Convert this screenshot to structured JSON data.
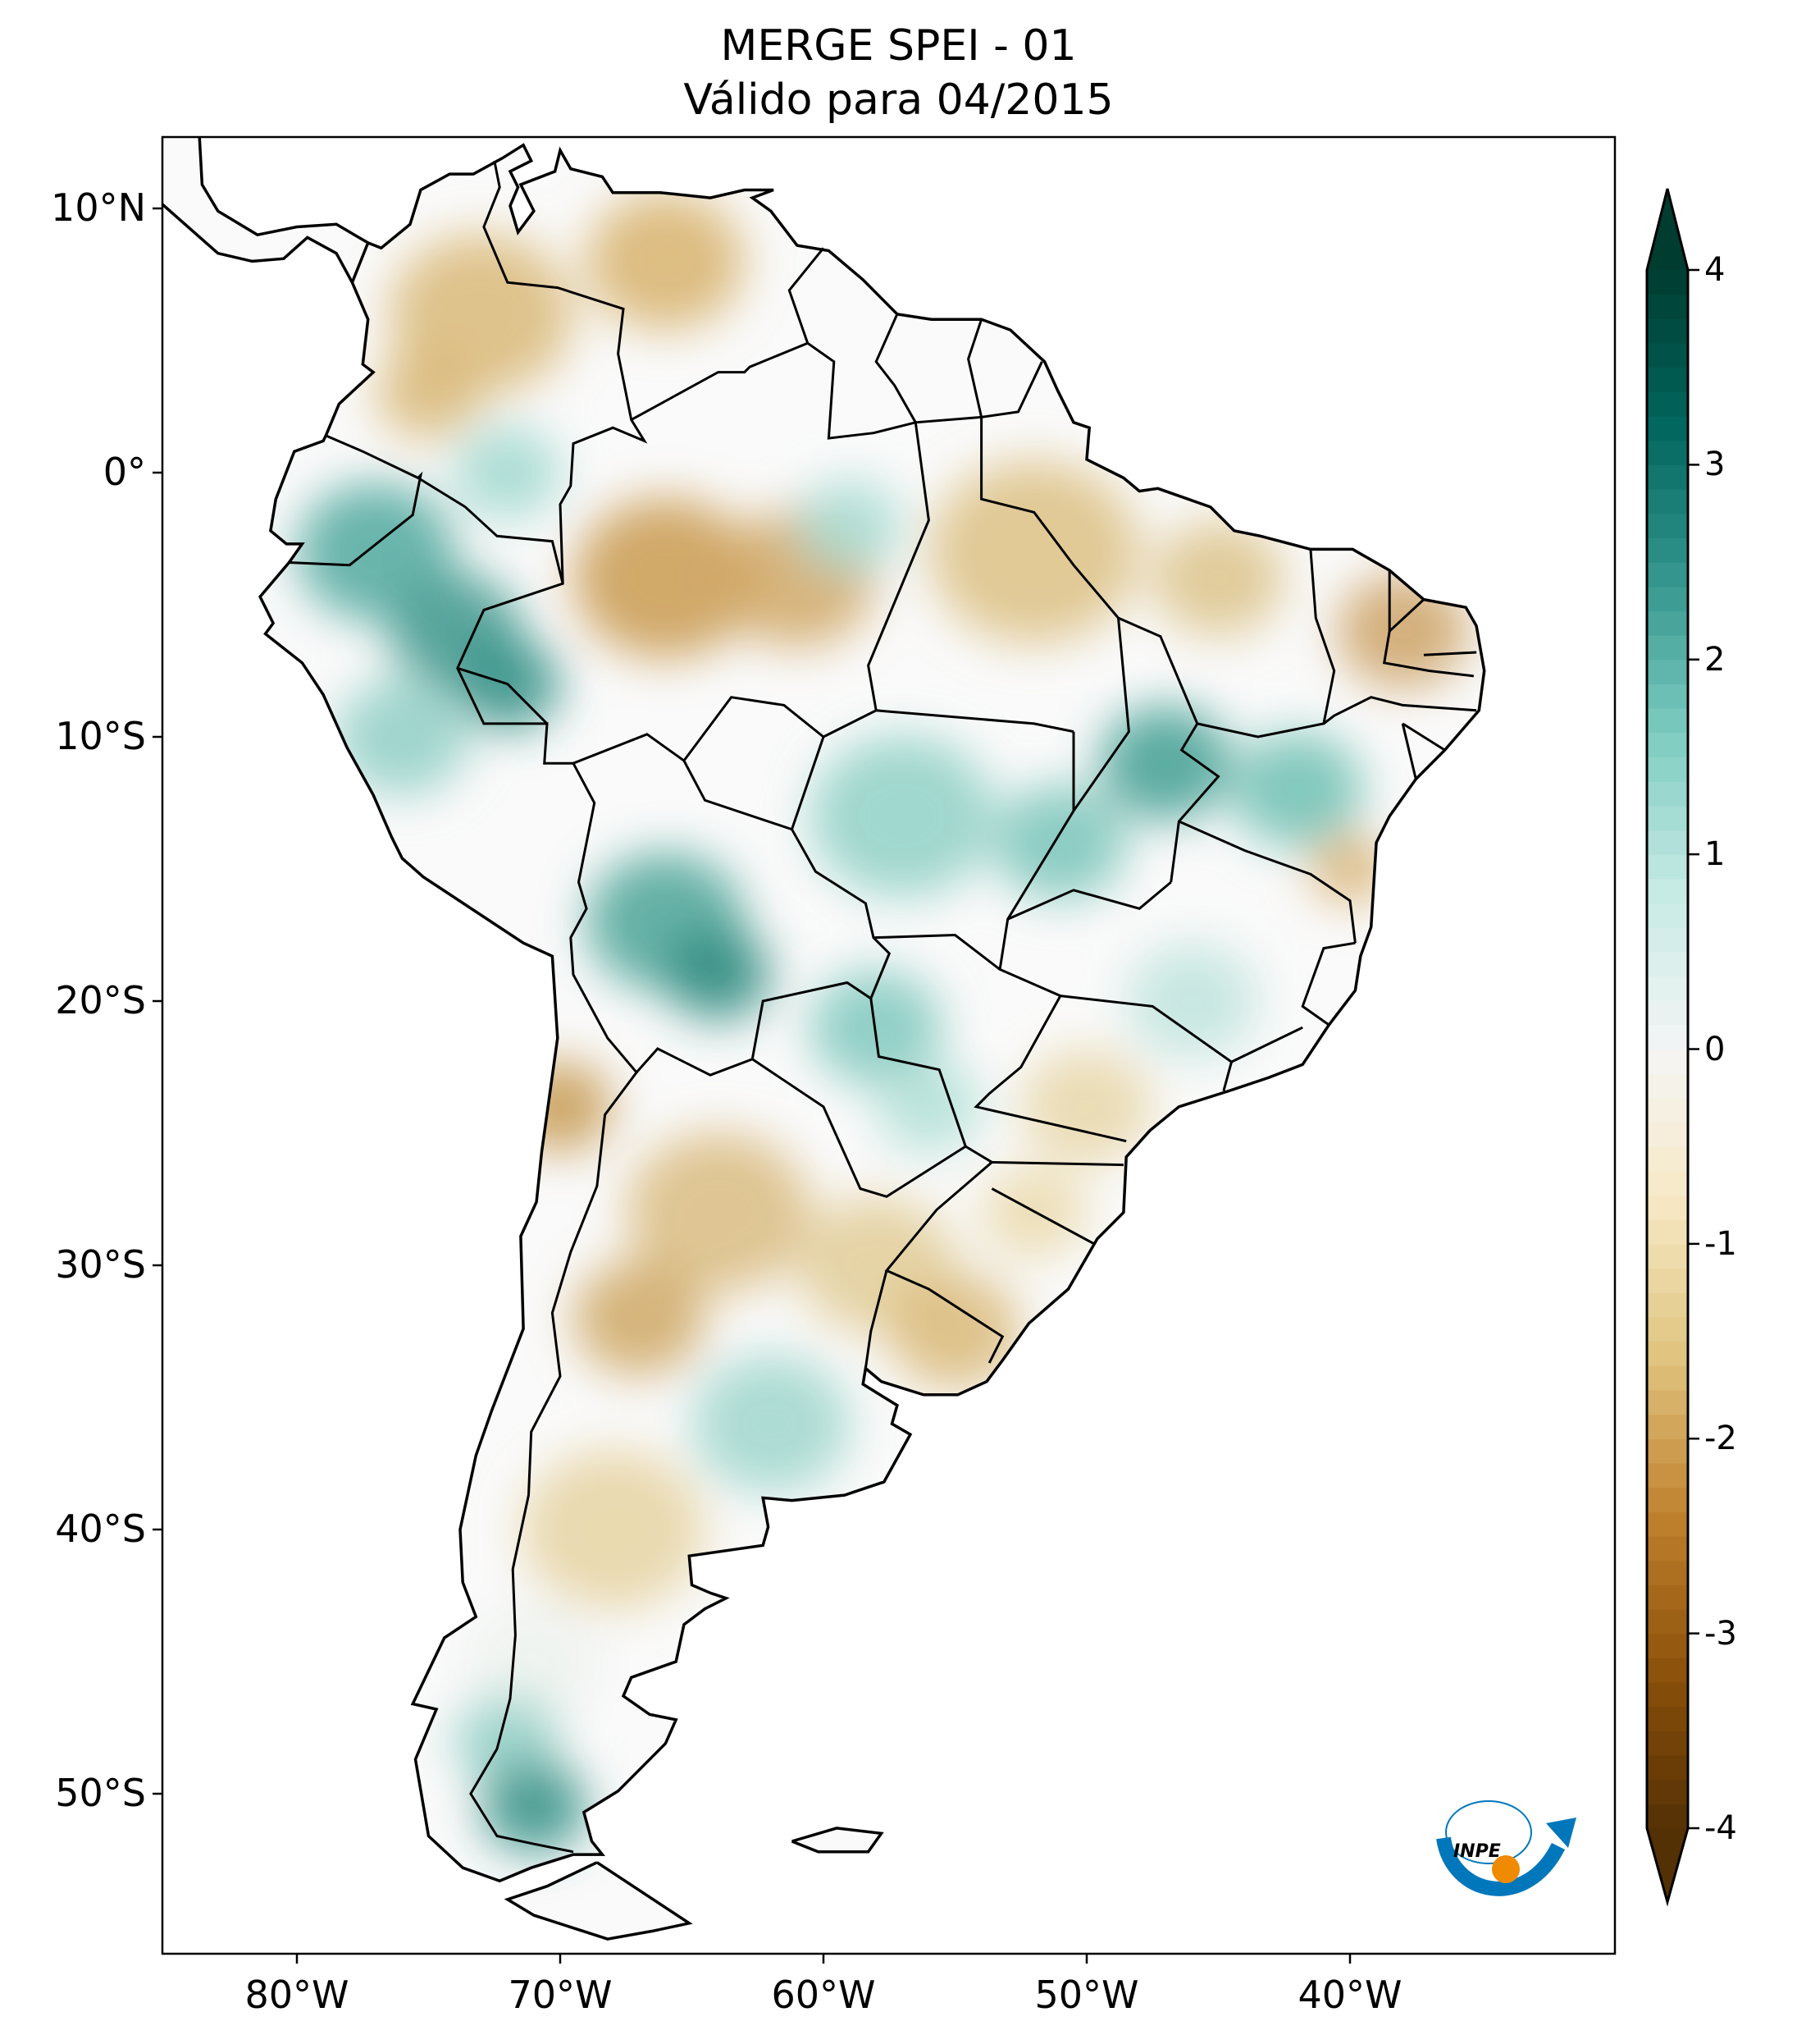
{
  "title": "MERGE   SPEI - 01",
  "subtitle": "Válido para 04/2015",
  "lat_ticks": [
    "10°N",
    "0°",
    "10°S",
    "20°S",
    "30°S",
    "40°S",
    "50°S"
  ],
  "lat_values": [
    10,
    0,
    -10,
    -20,
    -30,
    -40,
    -50
  ],
  "lon_ticks": [
    "80°W",
    "70°W",
    "60°W",
    "50°W",
    "40°W"
  ],
  "lon_values": [
    -80,
    -70,
    -60,
    -50,
    -40
  ],
  "extent": {
    "lon": [
      -85.1,
      -29.9
    ],
    "lat": [
      12.7,
      -56.1
    ]
  },
  "colorbar": {
    "ticks": [
      "4",
      "3",
      "2",
      "1",
      "0",
      "-1",
      "-2",
      "-3",
      "-4"
    ],
    "tick_values": [
      4,
      3,
      2,
      1,
      0,
      -1,
      -2,
      -3,
      -4
    ],
    "range": [
      -4,
      4
    ],
    "extend": "both",
    "colors": [
      "#543005",
      "#8c510a",
      "#bf812d",
      "#dfc27d",
      "#f6e8c3",
      "#f5f5f5",
      "#c7eae5",
      "#80cdc1",
      "#35978f",
      "#01665e",
      "#003c30"
    ]
  },
  "logo": {
    "text": "INPE",
    "colors": {
      "blue": "#0077bb",
      "orange": "#f08a00"
    }
  }
}
